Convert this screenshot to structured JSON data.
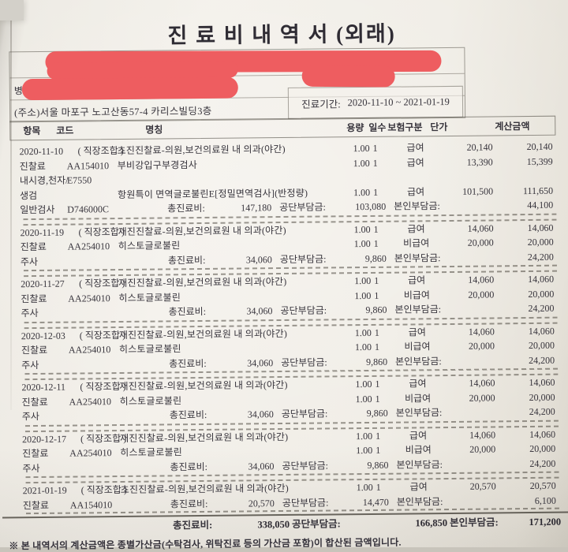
{
  "title": "진 료 비 내 역 서 (외래)",
  "patient_box": {
    "disease_label": "병",
    "address": "(주소)서울 마포구 노고산동57-4 카리스빌딩3층",
    "period_label": "진료기간:",
    "period_value": "2020-11-10 ~ 2021-01-19"
  },
  "table_headers": {
    "item": "항목",
    "code": "코드",
    "name": "명칭",
    "qty": "용량",
    "days": "일수",
    "insurance": "보험구분",
    "unit_price": "단가",
    "amount": "계산금액"
  },
  "subtotal_labels": {
    "total": "총진료비:",
    "corp": "공단부담금:",
    "self": "본인부담금:"
  },
  "blocks": [
    {
      "lines": [
        {
          "a": "2020-11-10",
          "b": "( 직장조합 )",
          "name": "초진진찰료-의원,보건의료원 내 의과(야간)",
          "qty": "1.00",
          "days": "1",
          "ins": "급여",
          "unit": "20,140",
          "amt": "20,140"
        },
        {
          "a": "진찰료",
          "b": "AA154010",
          "name": "부비강입구부경검사",
          "qty": "1.00",
          "days": "1",
          "ins": "급여",
          "unit": "13,390",
          "amt": "15,399"
        },
        {
          "a": "내시경,천자/",
          "b": "E7550"
        },
        {
          "a": "생검",
          "name": "항원특이 면역글로불린E[정밀면역검사](반정량)",
          "qty": "1.00",
          "days": "1",
          "ins": "급여",
          "unit": "101,500",
          "amt": "111,650"
        },
        {
          "a": "일반검사",
          "b": "D746000C",
          "subtotal": {
            "total": "147,180",
            "corp": "103,080",
            "self": "44,100"
          }
        }
      ]
    },
    {
      "lines": [
        {
          "a": "2020-11-19",
          "b": "( 직장조합 )",
          "name": "재진진찰료-의원,보건의료원 내 의과(야간)",
          "qty": "1.00",
          "days": "1",
          "ins": "급여",
          "unit": "14,060",
          "amt": "14,060"
        },
        {
          "a": "진찰료",
          "b": "AA254010",
          "name": "히스토글로불린",
          "qty": "1.00",
          "days": "1",
          "ins": "비급여",
          "unit": "20,000",
          "amt": "20,000"
        },
        {
          "a": "주사",
          "subtotal": {
            "total": "34,060",
            "corp": "9,860",
            "self": "24,200"
          }
        }
      ]
    },
    {
      "lines": [
        {
          "a": "2020-11-27",
          "b": "( 직장조합 )",
          "name": "재진진찰료-의원,보건의료원 내 의과(야간)",
          "qty": "1.00",
          "days": "1",
          "ins": "급여",
          "unit": "14,060",
          "amt": "14,060"
        },
        {
          "a": "진찰료",
          "b": "AA254010",
          "name": "히스토글로불린",
          "qty": "1.00",
          "days": "1",
          "ins": "비급여",
          "unit": "20,000",
          "amt": "20,000"
        },
        {
          "a": "주사",
          "subtotal": {
            "total": "34,060",
            "corp": "9,860",
            "self": "24,200"
          }
        }
      ]
    },
    {
      "lines": [
        {
          "a": "2020-12-03",
          "b": "( 직장조합 )",
          "name": "재진진찰료-의원,보건의료원 내 의과(야간)",
          "qty": "1.00",
          "days": "1",
          "ins": "급여",
          "unit": "14,060",
          "amt": "14,060"
        },
        {
          "a": "진찰료",
          "b": "AA254010",
          "name": "히스토글로불린",
          "qty": "1.00",
          "days": "1",
          "ins": "비급여",
          "unit": "20,000",
          "amt": "20,000"
        },
        {
          "a": "주사",
          "subtotal": {
            "total": "34,060",
            "corp": "9,860",
            "self": "24,200"
          }
        }
      ]
    },
    {
      "lines": [
        {
          "a": "2020-12-11",
          "b": "( 직장조합 )",
          "name": "재진진찰료-의원,보건의료원 내 의과(야간)",
          "qty": "1.00",
          "days": "1",
          "ins": "급여",
          "unit": "14,060",
          "amt": "14,060"
        },
        {
          "a": "진찰료",
          "b": "AA254010",
          "name": "히스토글로불린",
          "qty": "1.00",
          "days": "1",
          "ins": "비급여",
          "unit": "20,000",
          "amt": "20,000"
        },
        {
          "a": "주사",
          "subtotal": {
            "total": "34,060",
            "corp": "9,860",
            "self": "24,200"
          }
        }
      ]
    },
    {
      "lines": [
        {
          "a": "2020-12-17",
          "b": "( 직장조합 )",
          "name": "재진진찰료-의원,보건의료원 내 의과(야간)",
          "qty": "1.00",
          "days": "1",
          "ins": "급여",
          "unit": "14,060",
          "amt": "14,060"
        },
        {
          "a": "진찰료",
          "b": "AA254010",
          "name": "히스토글로불린",
          "qty": "1.00",
          "days": "1",
          "ins": "비급여",
          "unit": "20,000",
          "amt": "20,000"
        },
        {
          "a": "주사",
          "subtotal": {
            "total": "34,060",
            "corp": "9,860",
            "self": "24,200"
          }
        }
      ]
    },
    {
      "lines": [
        {
          "a": "2021-01-19",
          "b": "( 직장조합 )",
          "name": "초진진찰료-의원,보건의료원 내 의과(야간)",
          "qty": "1.00",
          "days": "1",
          "ins": "급여",
          "unit": "20,570",
          "amt": "20,570"
        },
        {
          "a": "진찰료",
          "b": "AA154010",
          "subtotal": {
            "total": "20,570",
            "corp": "14,470",
            "self": "6,100"
          }
        }
      ]
    }
  ],
  "grand_total": {
    "total": "338,050",
    "corp": "166,850",
    "self": "171,200"
  },
  "footnote": "※ 본 내역서의 계산금액은 종별가산금(수탁검사, 위탁진료 등의 가산금 포함)이 합산된 금액입니다."
}
